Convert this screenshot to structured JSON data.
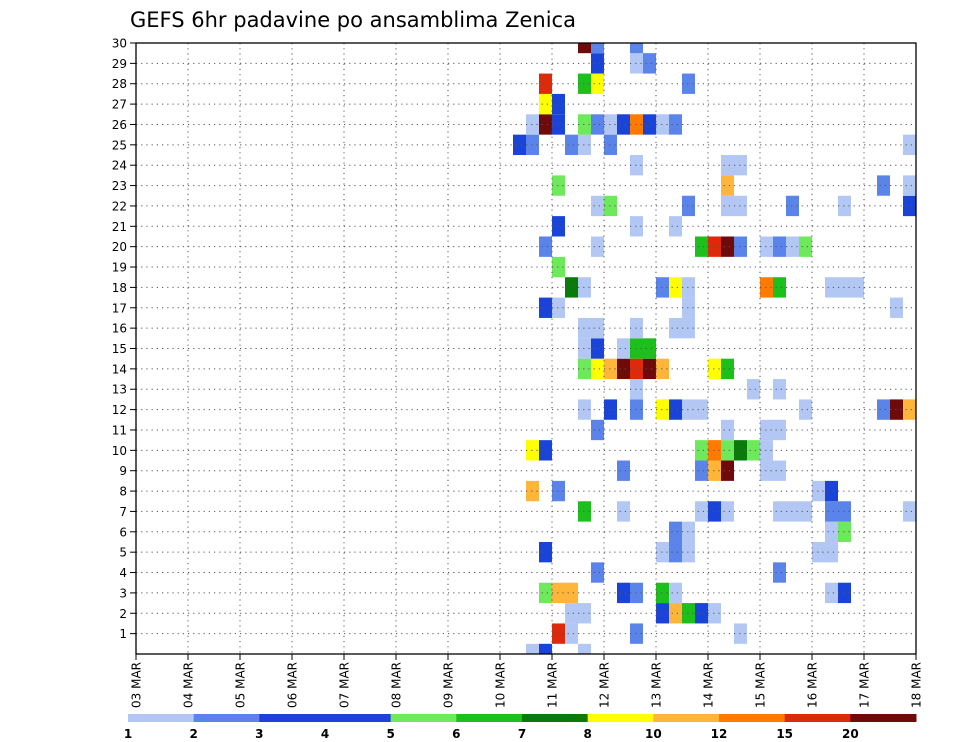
{
  "chart_data": {
    "type": "heatmap",
    "title": "GEFS 6hr padavine po ansamblima Zenica",
    "x_labels": [
      "03 MAR",
      "04 MAR",
      "05 MAR",
      "06 MAR",
      "07 MAR",
      "08 MAR",
      "09 MAR",
      "10 MAR",
      "11 MAR",
      "12 MAR",
      "13 MAR",
      "14 MAR",
      "15 MAR",
      "16 MAR",
      "17 MAR",
      "18 MAR"
    ],
    "y_labels": [
      "1",
      "2",
      "3",
      "4",
      "5",
      "6",
      "7",
      "8",
      "9",
      "10",
      "11",
      "12",
      "13",
      "14",
      "15",
      "16",
      "17",
      "18",
      "19",
      "20",
      "21",
      "22",
      "23",
      "24",
      "25",
      "26",
      "27",
      "28",
      "29",
      "30"
    ],
    "grid": true,
    "colorbar": {
      "labels": [
        "1",
        "2",
        "3",
        "4",
        "5",
        "6",
        "7",
        "8",
        "10",
        "12",
        "15",
        "20"
      ],
      "colors": [
        "#b3c7f5",
        "#5b84ea",
        "#1a44d8",
        "#1a44d8",
        "#6ee95b",
        "#1cbf1c",
        "#0a7a0a",
        "#ffff00",
        "#ffb43a",
        "#ff7a00",
        "#dd2a0a",
        "#6e0a0a"
      ]
    },
    "cells": [
      {
        "day": 10.5,
        "member": 0,
        "level": 1
      },
      {
        "day": 10.75,
        "member": 0,
        "level": 3
      },
      {
        "day": 11.5,
        "member": 0,
        "level": 1
      },
      {
        "day": 11.0,
        "member": 1,
        "level": 11
      },
      {
        "day": 11.25,
        "member": 1,
        "level": 1
      },
      {
        "day": 12.5,
        "member": 1,
        "level": 2
      },
      {
        "day": 14.5,
        "member": 1,
        "level": 1
      },
      {
        "day": 11.25,
        "member": 2,
        "level": 1
      },
      {
        "day": 11.5,
        "member": 2,
        "level": 1
      },
      {
        "day": 13.0,
        "member": 2,
        "level": 3
      },
      {
        "day": 13.25,
        "member": 2,
        "level": 9
      },
      {
        "day": 13.5,
        "member": 2,
        "level": 6
      },
      {
        "day": 13.75,
        "member": 2,
        "level": 3
      },
      {
        "day": 14.0,
        "member": 2,
        "level": 1
      },
      {
        "day": 10.75,
        "member": 3,
        "level": 5
      },
      {
        "day": 11.0,
        "member": 3,
        "level": 9
      },
      {
        "day": 11.25,
        "member": 3,
        "level": 9
      },
      {
        "day": 12.25,
        "member": 3,
        "level": 3
      },
      {
        "day": 12.5,
        "member": 3,
        "level": 2
      },
      {
        "day": 13.0,
        "member": 3,
        "level": 6
      },
      {
        "day": 13.25,
        "member": 3,
        "level": 1
      },
      {
        "day": 16.25,
        "member": 3,
        "level": 1
      },
      {
        "day": 16.5,
        "member": 3,
        "level": 3
      },
      {
        "day": 11.75,
        "member": 4,
        "level": 2
      },
      {
        "day": 15.25,
        "member": 4,
        "level": 2
      },
      {
        "day": 10.75,
        "member": 5,
        "level": 3
      },
      {
        "day": 13.0,
        "member": 5,
        "level": 1
      },
      {
        "day": 13.25,
        "member": 5,
        "level": 2
      },
      {
        "day": 13.5,
        "member": 5,
        "level": 1
      },
      {
        "day": 16.0,
        "member": 5,
        "level": 1
      },
      {
        "day": 16.25,
        "member": 5,
        "level": 1
      },
      {
        "day": 13.25,
        "member": 6,
        "level": 2
      },
      {
        "day": 13.5,
        "member": 6,
        "level": 1
      },
      {
        "day": 16.25,
        "member": 6,
        "level": 1
      },
      {
        "day": 16.5,
        "member": 6,
        "level": 5
      },
      {
        "day": 11.5,
        "member": 7,
        "level": 6
      },
      {
        "day": 12.25,
        "member": 7,
        "level": 1
      },
      {
        "day": 13.75,
        "member": 7,
        "level": 1
      },
      {
        "day": 14.0,
        "member": 7,
        "level": 3
      },
      {
        "day": 14.25,
        "member": 7,
        "level": 1
      },
      {
        "day": 15.25,
        "member": 7,
        "level": 1
      },
      {
        "day": 15.5,
        "member": 7,
        "level": 1
      },
      {
        "day": 15.75,
        "member": 7,
        "level": 1
      },
      {
        "day": 16.25,
        "member": 7,
        "level": 2
      },
      {
        "day": 16.5,
        "member": 7,
        "level": 2
      },
      {
        "day": 17.75,
        "member": 7,
        "level": 1
      },
      {
        "day": 10.5,
        "member": 8,
        "level": 9
      },
      {
        "day": 11.0,
        "member": 8,
        "level": 2
      },
      {
        "day": 16.0,
        "member": 8,
        "level": 1
      },
      {
        "day": 16.25,
        "member": 8,
        "level": 3
      },
      {
        "day": 12.25,
        "member": 9,
        "level": 2
      },
      {
        "day": 13.75,
        "member": 9,
        "level": 2
      },
      {
        "day": 14.0,
        "member": 9,
        "level": 9
      },
      {
        "day": 14.25,
        "member": 9,
        "level": 12
      },
      {
        "day": 15.0,
        "member": 9,
        "level": 1
      },
      {
        "day": 15.25,
        "member": 9,
        "level": 1
      },
      {
        "day": 10.5,
        "member": 10,
        "level": 8
      },
      {
        "day": 10.75,
        "member": 10,
        "level": 3
      },
      {
        "day": 13.75,
        "member": 10,
        "level": 5
      },
      {
        "day": 14.0,
        "member": 10,
        "level": 10
      },
      {
        "day": 14.25,
        "member": 10,
        "level": 5
      },
      {
        "day": 14.5,
        "member": 10,
        "level": 7
      },
      {
        "day": 14.75,
        "member": 10,
        "level": 5
      },
      {
        "day": 15.0,
        "member": 10,
        "level": 1
      },
      {
        "day": 11.75,
        "member": 11,
        "level": 2
      },
      {
        "day": 14.25,
        "member": 11,
        "level": 1
      },
      {
        "day": 15.0,
        "member": 11,
        "level": 1
      },
      {
        "day": 15.25,
        "member": 11,
        "level": 1
      },
      {
        "day": 11.5,
        "member": 12,
        "level": 1
      },
      {
        "day": 12.0,
        "member": 12,
        "level": 3
      },
      {
        "day": 12.5,
        "member": 12,
        "level": 2
      },
      {
        "day": 13.0,
        "member": 12,
        "level": 8
      },
      {
        "day": 13.25,
        "member": 12,
        "level": 3
      },
      {
        "day": 13.5,
        "member": 12,
        "level": 1
      },
      {
        "day": 13.75,
        "member": 12,
        "level": 1
      },
      {
        "day": 15.75,
        "member": 12,
        "level": 1
      },
      {
        "day": 17.25,
        "member": 12,
        "level": 2
      },
      {
        "day": 17.5,
        "member": 12,
        "level": 12
      },
      {
        "day": 17.75,
        "member": 12,
        "level": 9
      },
      {
        "day": 12.5,
        "member": 13,
        "level": 1
      },
      {
        "day": 14.75,
        "member": 13,
        "level": 1
      },
      {
        "day": 15.25,
        "member": 13,
        "level": 1
      },
      {
        "day": 11.5,
        "member": 14,
        "level": 5
      },
      {
        "day": 11.75,
        "member": 14,
        "level": 8
      },
      {
        "day": 12.0,
        "member": 14,
        "level": 9
      },
      {
        "day": 12.25,
        "member": 14,
        "level": 12
      },
      {
        "day": 12.5,
        "member": 14,
        "level": 11
      },
      {
        "day": 12.75,
        "member": 14,
        "level": 12
      },
      {
        "day": 13.0,
        "member": 14,
        "level": 9
      },
      {
        "day": 14.0,
        "member": 14,
        "level": 8
      },
      {
        "day": 14.25,
        "member": 14,
        "level": 6
      },
      {
        "day": 11.5,
        "member": 15,
        "level": 1
      },
      {
        "day": 11.75,
        "member": 15,
        "level": 3
      },
      {
        "day": 12.25,
        "member": 15,
        "level": 1
      },
      {
        "day": 12.5,
        "member": 15,
        "level": 6
      },
      {
        "day": 12.75,
        "member": 15,
        "level": 6
      },
      {
        "day": 11.5,
        "member": 16,
        "level": 1
      },
      {
        "day": 11.75,
        "member": 16,
        "level": 1
      },
      {
        "day": 12.5,
        "member": 16,
        "level": 1
      },
      {
        "day": 13.25,
        "member": 16,
        "level": 1
      },
      {
        "day": 13.5,
        "member": 16,
        "level": 1
      },
      {
        "day": 10.75,
        "member": 17,
        "level": 3
      },
      {
        "day": 11.0,
        "member": 17,
        "level": 1
      },
      {
        "day": 13.5,
        "member": 17,
        "level": 1
      },
      {
        "day": 17.5,
        "member": 17,
        "level": 1
      },
      {
        "day": 11.25,
        "member": 18,
        "level": 7
      },
      {
        "day": 11.5,
        "member": 18,
        "level": 1
      },
      {
        "day": 13.0,
        "member": 18,
        "level": 2
      },
      {
        "day": 13.25,
        "member": 18,
        "level": 8
      },
      {
        "day": 13.5,
        "member": 18,
        "level": 1
      },
      {
        "day": 15.0,
        "member": 18,
        "level": 10
      },
      {
        "day": 15.25,
        "member": 18,
        "level": 6
      },
      {
        "day": 16.25,
        "member": 18,
        "level": 1
      },
      {
        "day": 16.5,
        "member": 18,
        "level": 1
      },
      {
        "day": 16.75,
        "member": 18,
        "level": 1
      },
      {
        "day": 11.0,
        "member": 19,
        "level": 5
      },
      {
        "day": 10.75,
        "member": 20,
        "level": 2
      },
      {
        "day": 11.75,
        "member": 20,
        "level": 1
      },
      {
        "day": 13.75,
        "member": 20,
        "level": 6
      },
      {
        "day": 14.0,
        "member": 20,
        "level": 11
      },
      {
        "day": 14.25,
        "member": 20,
        "level": 12
      },
      {
        "day": 14.5,
        "member": 20,
        "level": 2
      },
      {
        "day": 15.0,
        "member": 20,
        "level": 1
      },
      {
        "day": 15.25,
        "member": 20,
        "level": 2
      },
      {
        "day": 15.5,
        "member": 20,
        "level": 1
      },
      {
        "day": 15.75,
        "member": 20,
        "level": 5
      },
      {
        "day": 11.0,
        "member": 21,
        "level": 3
      },
      {
        "day": 12.5,
        "member": 21,
        "level": 1
      },
      {
        "day": 13.25,
        "member": 21,
        "level": 1
      },
      {
        "day": 11.75,
        "member": 22,
        "level": 1
      },
      {
        "day": 12.0,
        "member": 22,
        "level": 5
      },
      {
        "day": 13.5,
        "member": 22,
        "level": 2
      },
      {
        "day": 14.25,
        "member": 22,
        "level": 1
      },
      {
        "day": 14.5,
        "member": 22,
        "level": 1
      },
      {
        "day": 15.5,
        "member": 22,
        "level": 2
      },
      {
        "day": 16.5,
        "member": 22,
        "level": 1
      },
      {
        "day": 17.75,
        "member": 22,
        "level": 3
      },
      {
        "day": 11.0,
        "member": 23,
        "level": 5
      },
      {
        "day": 14.25,
        "member": 23,
        "level": 9
      },
      {
        "day": 17.25,
        "member": 23,
        "level": 2
      },
      {
        "day": 17.75,
        "member": 23,
        "level": 1
      },
      {
        "day": 12.5,
        "member": 24,
        "level": 1
      },
      {
        "day": 14.25,
        "member": 24,
        "level": 1
      },
      {
        "day": 14.5,
        "member": 24,
        "level": 1
      },
      {
        "day": 10.25,
        "member": 25,
        "level": 3
      },
      {
        "day": 10.5,
        "member": 25,
        "level": 2
      },
      {
        "day": 11.25,
        "member": 25,
        "level": 2
      },
      {
        "day": 11.5,
        "member": 25,
        "level": 1
      },
      {
        "day": 12.0,
        "member": 25,
        "level": 2
      },
      {
        "day": 17.75,
        "member": 25,
        "level": 1
      },
      {
        "day": 10.5,
        "member": 26,
        "level": 1
      },
      {
        "day": 10.75,
        "member": 26,
        "level": 12
      },
      {
        "day": 11.0,
        "member": 26,
        "level": 3
      },
      {
        "day": 11.5,
        "member": 26,
        "level": 5
      },
      {
        "day": 11.75,
        "member": 26,
        "level": 2
      },
      {
        "day": 12.0,
        "member": 26,
        "level": 1
      },
      {
        "day": 12.25,
        "member": 26,
        "level": 3
      },
      {
        "day": 12.5,
        "member": 26,
        "level": 10
      },
      {
        "day": 12.75,
        "member": 26,
        "level": 3
      },
      {
        "day": 13.0,
        "member": 26,
        "level": 1
      },
      {
        "day": 13.25,
        "member": 26,
        "level": 2
      },
      {
        "day": 10.75,
        "member": 27,
        "level": 8
      },
      {
        "day": 11.0,
        "member": 27,
        "level": 3
      },
      {
        "day": 10.75,
        "member": 28,
        "level": 11
      },
      {
        "day": 11.5,
        "member": 28,
        "level": 6
      },
      {
        "day": 11.75,
        "member": 28,
        "level": 8
      },
      {
        "day": 13.5,
        "member": 28,
        "level": 2
      },
      {
        "day": 11.75,
        "member": 29,
        "level": 3
      },
      {
        "day": 12.5,
        "member": 29,
        "level": 1
      },
      {
        "day": 12.75,
        "member": 29,
        "level": 2
      },
      {
        "day": 11.5,
        "member": 30,
        "level": 12
      },
      {
        "day": 11.75,
        "member": 30,
        "level": 2
      },
      {
        "day": 12.5,
        "member": 30,
        "level": 2
      }
    ]
  }
}
